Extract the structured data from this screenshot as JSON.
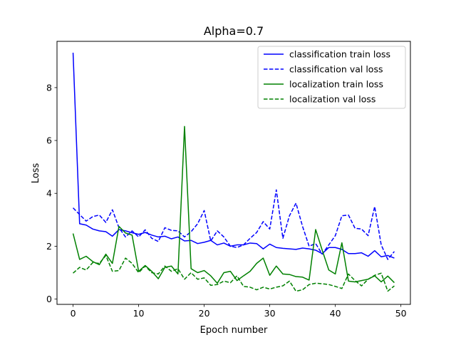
{
  "chart_data": {
    "type": "line",
    "title": "Alpha=0.7",
    "xlabel": "Epoch number",
    "ylabel": "Loss",
    "xlim": [
      -2.45,
      51.45
    ],
    "ylim": [
      -0.2,
      9.75
    ],
    "xticks": [
      "0",
      "10",
      "20",
      "30",
      "40",
      "50"
    ],
    "yticks": [
      "0",
      "2",
      "4",
      "6",
      "8"
    ],
    "grid": false,
    "legend_position": "top-right",
    "x": [
      0,
      1,
      2,
      3,
      4,
      5,
      6,
      7,
      8,
      9,
      10,
      11,
      12,
      13,
      14,
      15,
      16,
      17,
      18,
      19,
      20,
      21,
      22,
      23,
      24,
      25,
      26,
      27,
      28,
      29,
      30,
      31,
      32,
      33,
      34,
      35,
      36,
      37,
      38,
      39,
      40,
      41,
      42,
      43,
      44,
      45,
      46,
      47,
      48,
      49
    ],
    "series": [
      {
        "name": "classification train loss",
        "color": "#0000ff",
        "dash": "solid",
        "values": [
          9.32,
          2.85,
          2.8,
          2.65,
          2.58,
          2.55,
          2.38,
          2.63,
          2.58,
          2.51,
          2.45,
          2.52,
          2.42,
          2.35,
          2.38,
          2.28,
          2.35,
          2.2,
          2.22,
          2.1,
          2.15,
          2.22,
          2.05,
          2.12,
          2.0,
          2.05,
          2.05,
          2.12,
          2.1,
          1.9,
          2.08,
          1.95,
          1.92,
          1.9,
          1.88,
          1.93,
          1.9,
          1.85,
          1.72,
          1.95,
          1.95,
          1.88,
          1.72,
          1.72,
          1.75,
          1.62,
          1.83,
          1.6,
          1.65,
          1.55
        ]
      },
      {
        "name": "classification val loss",
        "color": "#0000ff",
        "dash": "dashed",
        "values": [
          3.45,
          3.2,
          2.95,
          3.12,
          3.18,
          2.9,
          3.38,
          2.7,
          2.35,
          2.58,
          2.35,
          2.62,
          2.3,
          2.18,
          2.7,
          2.6,
          2.58,
          2.35,
          2.55,
          2.85,
          3.35,
          2.2,
          2.58,
          2.35,
          2.0,
          1.95,
          2.05,
          2.3,
          2.52,
          2.93,
          2.65,
          4.13,
          2.3,
          3.15,
          3.63,
          2.75,
          2.0,
          2.1,
          1.7,
          2.05,
          2.4,
          3.15,
          3.18,
          2.68,
          2.65,
          2.4,
          3.5,
          2.05,
          1.5,
          1.8
        ]
      },
      {
        "name": "localization train loss",
        "color": "#008000",
        "dash": "solid",
        "values": [
          2.48,
          1.5,
          1.62,
          1.42,
          1.3,
          1.7,
          1.35,
          2.75,
          2.5,
          2.42,
          1.05,
          1.27,
          1.05,
          0.77,
          1.2,
          1.25,
          0.95,
          6.53,
          1.15,
          1.0,
          1.08,
          0.88,
          0.6,
          1.0,
          1.05,
          0.7,
          0.88,
          1.05,
          1.35,
          1.55,
          0.9,
          1.25,
          0.95,
          0.93,
          0.85,
          0.83,
          0.72,
          2.63,
          1.85,
          1.1,
          0.95,
          2.13,
          0.68,
          0.65,
          0.7,
          0.75,
          0.88,
          0.65,
          0.87,
          0.62
        ]
      },
      {
        "name": "localization val loss",
        "color": "#008000",
        "dash": "dashed",
        "values": [
          0.98,
          1.2,
          1.1,
          1.38,
          1.35,
          1.65,
          1.05,
          1.08,
          1.55,
          1.35,
          1.0,
          1.25,
          1.0,
          0.95,
          1.25,
          1.05,
          1.15,
          0.75,
          1.0,
          0.75,
          0.8,
          0.52,
          0.55,
          0.68,
          0.62,
          0.88,
          0.48,
          0.45,
          0.35,
          0.45,
          0.38,
          0.45,
          0.5,
          0.68,
          0.3,
          0.35,
          0.55,
          0.6,
          0.58,
          0.55,
          0.48,
          0.4,
          0.95,
          0.7,
          0.5,
          0.75,
          0.9,
          0.98,
          0.3,
          0.5
        ]
      }
    ]
  }
}
